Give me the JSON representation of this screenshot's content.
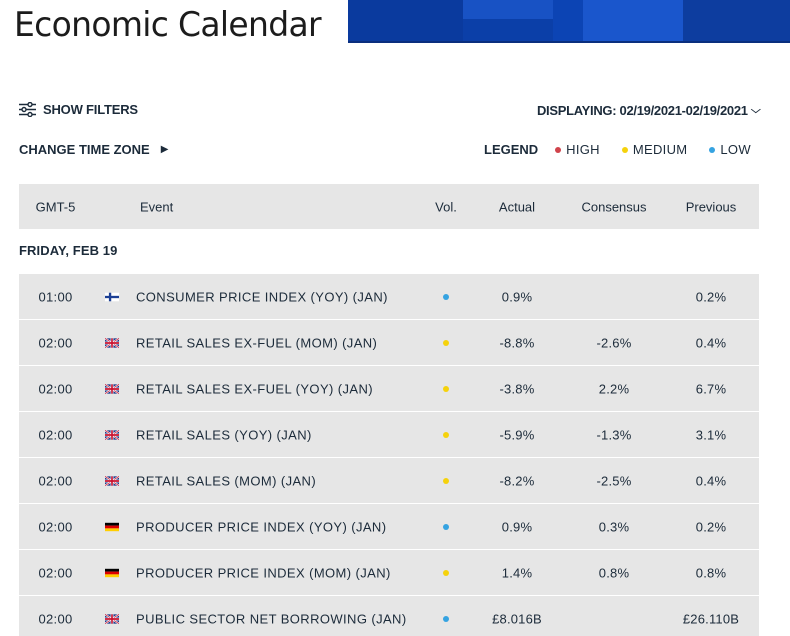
{
  "page": {
    "title": "Economic Calendar"
  },
  "colors": {
    "high": "#d0434b",
    "medium": "#f5d20c",
    "low": "#35a3e1",
    "banner": "#0b3fa8"
  },
  "controls": {
    "show_filters": {
      "label": "SHOW FILTERS",
      "icon": "sliders-icon"
    },
    "displaying": {
      "label": "DISPLAYING: 02/19/2021-02/19/2021",
      "icon": "chevron-down-icon"
    },
    "change_time_zone": {
      "label": "CHANGE TIME ZONE",
      "icon": "play-arrow-icon"
    }
  },
  "legend": {
    "title": "LEGEND",
    "items": [
      {
        "label": "HIGH",
        "level": "high"
      },
      {
        "label": "MEDIUM",
        "level": "medium"
      },
      {
        "label": "LOW",
        "level": "low"
      }
    ]
  },
  "table": {
    "headers": {
      "time": "GMT-5",
      "event": "Event",
      "vol": "Vol.",
      "actual": "Actual",
      "consensus": "Consensus",
      "previous": "Previous"
    },
    "day_label": "FRIDAY, FEB 19",
    "rows": [
      {
        "time": "01:00",
        "country": "fi",
        "event": "CONSUMER PRICE INDEX (YOY) (JAN)",
        "vol": "low",
        "actual": "0.9%",
        "consensus": "",
        "previous": "0.2%"
      },
      {
        "time": "02:00",
        "country": "gb",
        "event": "RETAIL SALES EX-FUEL (MOM) (JAN)",
        "vol": "medium",
        "actual": "-8.8%",
        "consensus": "-2.6%",
        "previous": "0.4%"
      },
      {
        "time": "02:00",
        "country": "gb",
        "event": "RETAIL SALES EX-FUEL (YOY) (JAN)",
        "vol": "medium",
        "actual": "-3.8%",
        "consensus": "2.2%",
        "previous": "6.7%"
      },
      {
        "time": "02:00",
        "country": "gb",
        "event": "RETAIL SALES (YOY) (JAN)",
        "vol": "medium",
        "actual": "-5.9%",
        "consensus": "-1.3%",
        "previous": "3.1%"
      },
      {
        "time": "02:00",
        "country": "gb",
        "event": "RETAIL SALES (MOM) (JAN)",
        "vol": "medium",
        "actual": "-8.2%",
        "consensus": "-2.5%",
        "previous": "0.4%"
      },
      {
        "time": "02:00",
        "country": "de",
        "event": "PRODUCER PRICE INDEX (YOY) (JAN)",
        "vol": "low",
        "actual": "0.9%",
        "consensus": "0.3%",
        "previous": "0.2%"
      },
      {
        "time": "02:00",
        "country": "de",
        "event": "PRODUCER PRICE INDEX (MOM) (JAN)",
        "vol": "medium",
        "actual": "1.4%",
        "consensus": "0.8%",
        "previous": "0.8%"
      },
      {
        "time": "02:00",
        "country": "gb",
        "event": "PUBLIC SECTOR NET BORROWING (JAN)",
        "vol": "low",
        "actual": "£8.016B",
        "consensus": "",
        "previous": "£26.110B"
      }
    ]
  }
}
